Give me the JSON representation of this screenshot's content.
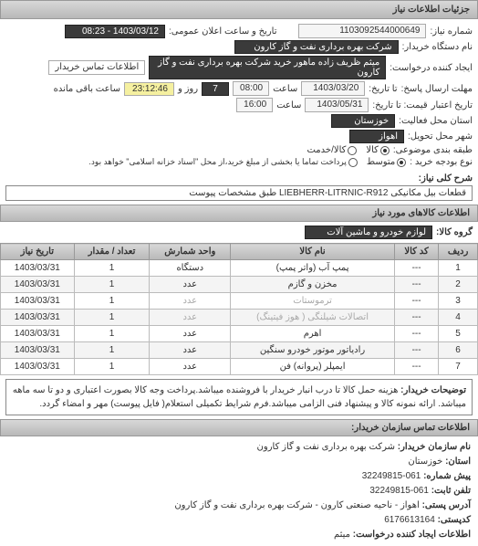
{
  "header": "جزئیات اطلاعات نیاز",
  "need_number": {
    "label": "شماره نیاز:",
    "value": "1103092544000649"
  },
  "public_announce": {
    "label": "تاریخ و ساعت اعلان عمومی:",
    "value": "1403/03/12 - 08:23"
  },
  "device_name": {
    "label": "نام دستگاه خریدار:",
    "value": "شرکت بهره برداری نفت و گاز کارون"
  },
  "request_creator": {
    "label": "ایجاد کننده درخواست:",
    "value": "میثم ظریف زاده ماهور خرید شرکت بهره برداری نفت و گاز کارون"
  },
  "buyer_contact_link": "اطلاعات تماس خریدار",
  "response_deadline": {
    "label": "مهلت ارسال پاسخ:",
    "sublabel": "تا تاریخ:",
    "date": "1403/03/20",
    "time_label": "ساعت",
    "time": "08:00",
    "days": "7",
    "days_label": "روز و",
    "remain": "23:12:46",
    "remain_label": "ساعت باقی مانده"
  },
  "validity": {
    "label": "تاریخ اعتبار",
    "sublabel": "قیمت: تا تاریخ:",
    "date": "1403/05/31",
    "time_label": "ساعت",
    "time": "16:00"
  },
  "activity_province": {
    "label": "استان محل فعالیت:",
    "value": "خوزستان"
  },
  "delivery_city": {
    "label": "شهر محل تحویل:",
    "value": "اهواز"
  },
  "budget_row": {
    "label": "طبقه بندی موضوعی:",
    "options": [
      "کالا",
      "کالا/خدمت"
    ],
    "selected": 0
  },
  "purchase_type": {
    "label": "نوع بودجه خرید :",
    "options": [
      "متوسط",
      "پرداخت تماما یا بخشی از مبلغ خرید،از محل \"اسناد خزانه اسلامی\" خواهد بود."
    ],
    "selected": 0
  },
  "need_desc": {
    "label": "شرح کلی نیاز:",
    "value": "قطعات بیل مکانیکی LIEBHERR-LITRNIC-R912 طبق مشخصات پیوست"
  },
  "goods_title": "اطلاعات کالاهای مورد نیاز",
  "group": {
    "label": "گروه کالا:",
    "value": "لوازم خودرو و ماشین آلات"
  },
  "table": {
    "columns": [
      "ردیف",
      "کد کالا",
      "نام کالا",
      "واحد شمارش",
      "تعداد / مقدار",
      "تاریخ نیاز"
    ],
    "rows": [
      [
        "1",
        "---",
        "پمپ آب (واتر پمپ)",
        "دستگاه",
        "1",
        "1403/03/31"
      ],
      [
        "2",
        "---",
        "مخزن و گازم",
        "عدد",
        "1",
        "1403/03/31"
      ],
      [
        "3",
        "---",
        "ترموستات",
        "عدد",
        "1",
        "1403/03/31"
      ],
      [
        "4",
        "---",
        "اتصالات شیلنگی ( هوز فیتینگ)",
        "عدد",
        "1",
        "1403/03/31"
      ],
      [
        "5",
        "---",
        "اهرم",
        "عدد",
        "1",
        "1403/03/31"
      ],
      [
        "6",
        "---",
        "رادیاتور موتور خودرو سنگین",
        "عدد",
        "1",
        "1403/03/31"
      ],
      [
        "7",
        "---",
        "ایمپلر (پروانه) فن",
        "عدد",
        "1",
        "1403/03/31"
      ]
    ],
    "watermark": "پایگاه جامع مناقصات و مزایده های کشور ۰۲۱-۸۸۳۴۹۶۷۰-۵"
  },
  "note": {
    "label": "توضیحات خریدار:",
    "text": "هزینه حمل کالا تا درب انبار خریدار با فروشنده میباشد.پرداخت وجه کالا بصورت اعتباری و دو تا سه ماهه میباشد. ارائه نمونه کالا و پیشنهاد فنی الزامی میباشد.فرم شرایط تکمیلی استعلام( فایل پیوست) مهر و امضاء گردد."
  },
  "contact_title": "اطلاعات تماس سازمان خریدار:",
  "contact": {
    "org_label": "نام سازمان خریدار:",
    "org": "شرکت بهره برداری نفت و گاز کارون",
    "province_label": "استان:",
    "province": "خوزستان",
    "prefix_label": "پیش شماره:",
    "prefix": "061-32249815",
    "phone_label": "تلفن ثابت:",
    "phone": "061-32249815",
    "address_label": "آدرس پستی:",
    "address": "اهواز - ناحیه صنعتی کارون - شرکت بهره برداری نفت و گاز کارون",
    "postal_label": "کدپستی:",
    "postal": "6176613164",
    "creator_label": "اطلاعات ایجاد کننده درخواست:",
    "creator": "میثم"
  }
}
